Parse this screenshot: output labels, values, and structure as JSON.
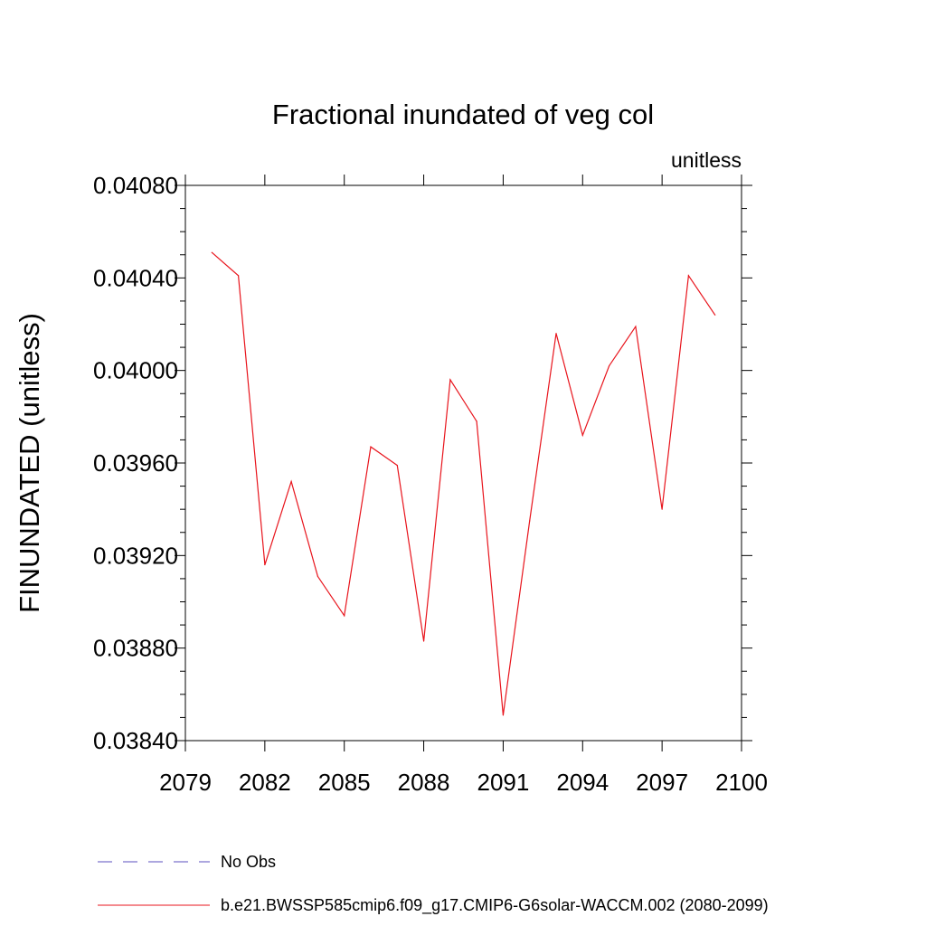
{
  "chart_data": {
    "type": "line",
    "title": "Fractional inundated of veg col",
    "units_label": "unitless",
    "xlabel": "",
    "ylabel": "FINUNDATED  (unitless)",
    "xlim": [
      2079,
      2100
    ],
    "ylim": [
      0.0384,
      0.0408
    ],
    "xticks": [
      2079,
      2082,
      2085,
      2088,
      2091,
      2094,
      2097,
      2100
    ],
    "xtick_labels": [
      "2079",
      "2082",
      "2085",
      "2088",
      "2091",
      "2094",
      "2097",
      "2100"
    ],
    "yticks": [
      0.0384,
      0.0388,
      0.0392,
      0.0396,
      0.04,
      0.0404,
      0.0408
    ],
    "ytick_labels": [
      "0.03840",
      "0.03880",
      "0.03920",
      "0.03960",
      "0.04000",
      "0.04040",
      "0.04080"
    ],
    "grid": false,
    "legend_position": "bottom",
    "series": [
      {
        "name": "b.e21.BWSSP585cmip6.f09_g17.CMIP6-G6solar-WACCM.002 (2080-2099)",
        "color": "#e8141c",
        "style": "solid",
        "x": [
          2080,
          2081,
          2082,
          2083,
          2084,
          2085,
          2086,
          2087,
          2088,
          2089,
          2090,
          2091,
          2092,
          2093,
          2094,
          2095,
          2096,
          2097,
          2098,
          2099
        ],
        "y": [
          0.04051,
          0.04041,
          0.03916,
          0.03952,
          0.03911,
          0.03894,
          0.03967,
          0.03959,
          0.03883,
          0.03996,
          0.03978,
          0.03851,
          0.03935,
          0.04016,
          0.03972,
          0.04002,
          0.04019,
          0.0394,
          0.04041,
          0.04024
        ]
      }
    ],
    "legend": [
      {
        "label": "No Obs",
        "color": "#5b4fbf",
        "style": "dashed"
      },
      {
        "label": "b.e21.BWSSP585cmip6.f09_g17.CMIP6-G6solar-WACCM.002 (2080-2099)",
        "color": "#e8141c",
        "style": "solid"
      }
    ]
  }
}
